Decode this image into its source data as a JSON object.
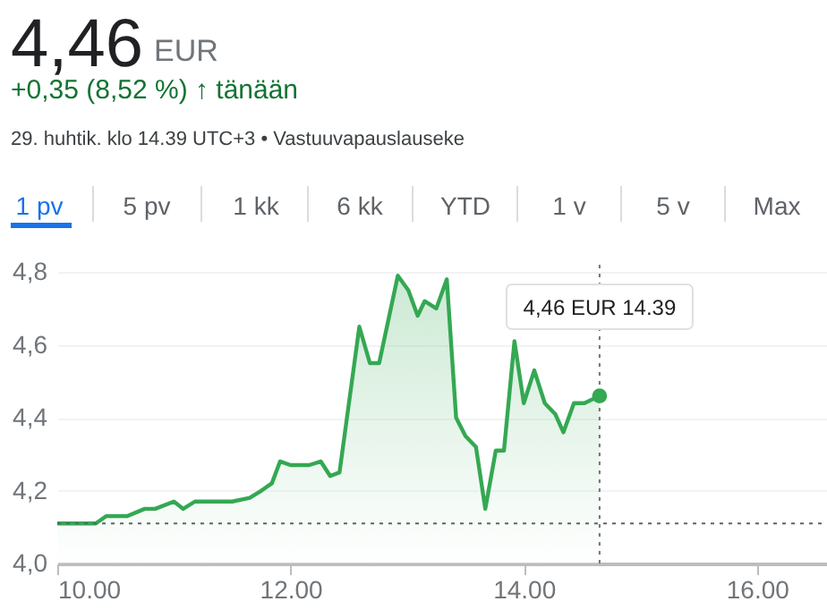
{
  "chart_data": {
    "type": "area",
    "title": "4,46",
    "x": [
      10.0,
      10.33,
      10.42,
      10.6,
      10.75,
      10.84,
      11.0,
      11.08,
      11.18,
      11.5,
      11.65,
      11.75,
      11.84,
      11.91,
      12.0,
      12.16,
      12.26,
      12.34,
      12.42,
      12.59,
      12.68,
      12.76,
      12.92,
      13.01,
      13.09,
      13.15,
      13.25,
      13.34,
      13.42,
      13.5,
      13.59,
      13.67,
      13.76,
      13.83,
      13.92,
      14.0,
      14.09,
      14.18,
      14.27,
      14.34,
      14.43,
      14.52,
      14.65
    ],
    "series": [
      {
        "color": "#34a853",
        "values": [
          4.11,
          4.11,
          4.13,
          4.13,
          4.15,
          4.15,
          4.17,
          4.15,
          4.17,
          4.17,
          4.18,
          4.2,
          4.22,
          4.28,
          4.27,
          4.27,
          4.28,
          4.24,
          4.25,
          4.65,
          4.55,
          4.55,
          4.79,
          4.75,
          4.68,
          4.72,
          4.7,
          4.78,
          4.4,
          4.35,
          4.32,
          4.15,
          4.31,
          4.31,
          4.61,
          4.44,
          4.53,
          4.44,
          4.41,
          4.36,
          4.44,
          4.44,
          4.46
        ]
      }
    ],
    "xlim": [
      10,
      16.6
    ],
    "xticks": [
      {
        "value": 10,
        "label": "10.00"
      },
      {
        "value": 12,
        "label": "12.00"
      },
      {
        "value": 14,
        "label": "14.00"
      },
      {
        "value": 16,
        "label": "16.00"
      }
    ],
    "ylim": [
      4.0,
      4.82
    ],
    "yticks": [
      {
        "value": 4.0,
        "label": "4,0"
      },
      {
        "value": 4.2,
        "label": "4,2"
      },
      {
        "value": 4.4,
        "label": "4,4"
      },
      {
        "value": 4.6,
        "label": "4,6"
      },
      {
        "value": 4.8,
        "label": "4,8"
      }
    ],
    "ref_lines": [
      {
        "axis": "y",
        "value": 4.11,
        "color": "#5f6368",
        "line_style": "dotted"
      },
      {
        "axis": "x",
        "value": 14.65,
        "color": "#70757a",
        "line_style": "dotted"
      }
    ],
    "annotations": [
      "EUR",
      "+0,35 (8,52 %) ↑ tänään",
      "29. huhtik. klo 14.39 UTC+3 • Vastuuvapauslauseke",
      "1 pv",
      "5 pv",
      "1 kk",
      "6 kk",
      "YTD",
      "1 v",
      "5 v",
      "Max",
      "4,46 EUR  14.39"
    ],
    "grid": "y",
    "marker": "none",
    "line_style": "solid"
  }
}
